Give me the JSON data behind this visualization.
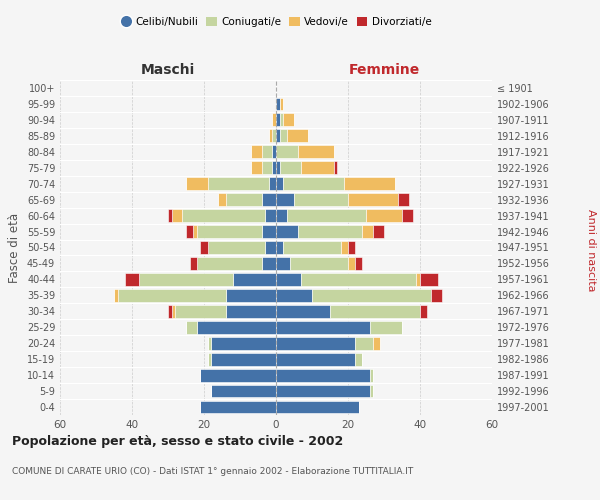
{
  "age_groups": [
    "0-4",
    "5-9",
    "10-14",
    "15-19",
    "20-24",
    "25-29",
    "30-34",
    "35-39",
    "40-44",
    "45-49",
    "50-54",
    "55-59",
    "60-64",
    "65-69",
    "70-74",
    "75-79",
    "80-84",
    "85-89",
    "90-94",
    "95-99",
    "100+"
  ],
  "birth_years": [
    "1997-2001",
    "1992-1996",
    "1987-1991",
    "1982-1986",
    "1977-1981",
    "1972-1976",
    "1967-1971",
    "1962-1966",
    "1957-1961",
    "1952-1956",
    "1947-1951",
    "1942-1946",
    "1937-1941",
    "1932-1936",
    "1927-1931",
    "1922-1926",
    "1917-1921",
    "1912-1916",
    "1907-1911",
    "1902-1906",
    "≤ 1901"
  ],
  "colors": {
    "celibi": "#4472a8",
    "coniugati": "#c5d5a0",
    "vedovi": "#f0bc60",
    "divorziati": "#c0282c"
  },
  "maschi": {
    "celibi": [
      21,
      18,
      21,
      18,
      18,
      22,
      14,
      14,
      12,
      4,
      3,
      4,
      3,
      4,
      2,
      1,
      1,
      0,
      0,
      0,
      0
    ],
    "coniugati": [
      0,
      0,
      0,
      1,
      1,
      3,
      14,
      30,
      26,
      18,
      16,
      18,
      23,
      10,
      17,
      3,
      3,
      1,
      0,
      0,
      0
    ],
    "vedovi": [
      0,
      0,
      0,
      0,
      0,
      0,
      1,
      1,
      0,
      0,
      0,
      1,
      3,
      2,
      6,
      3,
      3,
      1,
      1,
      0,
      0
    ],
    "divorziati": [
      0,
      0,
      0,
      0,
      0,
      0,
      1,
      0,
      4,
      2,
      2,
      2,
      1,
      0,
      0,
      0,
      0,
      0,
      0,
      0,
      0
    ]
  },
  "femmine": {
    "celibi": [
      23,
      26,
      26,
      22,
      22,
      26,
      15,
      10,
      7,
      4,
      2,
      6,
      3,
      5,
      2,
      1,
      0,
      1,
      1,
      1,
      0
    ],
    "coniugati": [
      0,
      1,
      1,
      2,
      5,
      9,
      25,
      33,
      32,
      16,
      16,
      18,
      22,
      15,
      17,
      6,
      6,
      2,
      1,
      0,
      0
    ],
    "vedovi": [
      0,
      0,
      0,
      0,
      2,
      0,
      0,
      0,
      1,
      2,
      2,
      3,
      10,
      14,
      14,
      9,
      10,
      6,
      3,
      1,
      0
    ],
    "divorziati": [
      0,
      0,
      0,
      0,
      0,
      0,
      2,
      3,
      5,
      2,
      2,
      3,
      3,
      3,
      0,
      1,
      0,
      0,
      0,
      0,
      0
    ]
  },
  "title": "Popolazione per età, sesso e stato civile - 2002",
  "subtitle": "COMUNE DI CARATE URIO (CO) - Dati ISTAT 1° gennaio 2002 - Elaborazione TUTTITALIA.IT",
  "xlabel_left": "Maschi",
  "xlabel_right": "Femmine",
  "ylabel_left": "Fasce di età",
  "ylabel_right": "Anni di nascita",
  "xlim": 60,
  "legend_labels": [
    "Celibi/Nubili",
    "Coniugati/e",
    "Vedovi/e",
    "Divorziati/e"
  ],
  "background_color": "#f5f5f5"
}
